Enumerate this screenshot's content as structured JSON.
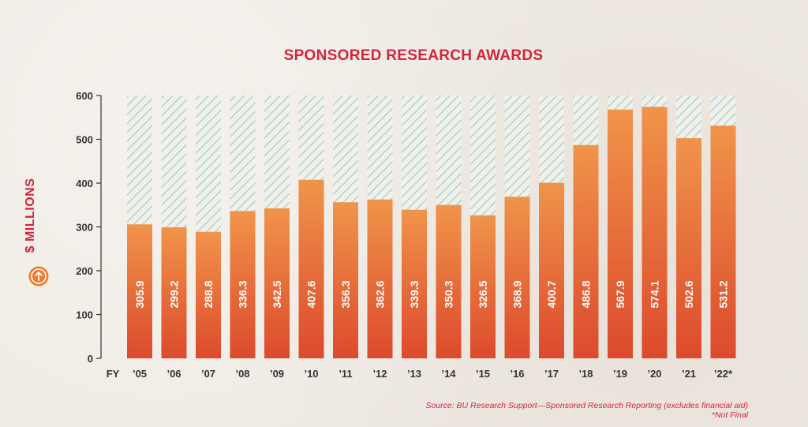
{
  "chart_data": {
    "type": "bar",
    "title": "SPONSORED RESEARCH AWARDS",
    "ylabel": "$ MILLIONS",
    "xlabel_prefix": "FY",
    "categories": [
      "’05",
      "’06",
      "’07",
      "’08",
      "’09",
      "’10",
      "’11",
      "’12",
      "’13",
      "’14",
      "’15",
      "’16",
      "’17",
      "’18",
      "’19",
      "’20",
      "’21",
      "’22*"
    ],
    "values": [
      305.9,
      299.2,
      288.8,
      336.3,
      342.5,
      407.6,
      356.3,
      362.6,
      339.3,
      350.3,
      326.5,
      368.9,
      400.7,
      486.8,
      567.9,
      574.1,
      502.6,
      531.2
    ],
    "value_labels": [
      "305.9",
      "299.2",
      "288.8",
      "336.3",
      "342.5",
      "407.6",
      "356.3",
      "362.6",
      "339.3",
      "350.3",
      "326.5",
      "368.9",
      "400.7",
      "486.8",
      "567.9",
      "574.1",
      "502.6",
      "531.2"
    ],
    "yticks": [
      0,
      100,
      200,
      300,
      400,
      500,
      600
    ],
    "ylim": [
      0,
      600
    ],
    "grid": false,
    "legend": "none",
    "background_bar": "hatched to 600"
  },
  "source": "Source: BU Research Support—Sponsored Research Reporting (excludes financial aid)",
  "footnote": "*Not Final",
  "icons": {
    "axis_icon": "arrow-up-circle-icon"
  },
  "colors": {
    "title": "#d1263e",
    "bar_top": "#f0944a",
    "bar_bottom": "#dc4a2d",
    "hatch": "#9fd1cf",
    "axis": "#333333",
    "arrow_circle": "#ee7b2d"
  }
}
